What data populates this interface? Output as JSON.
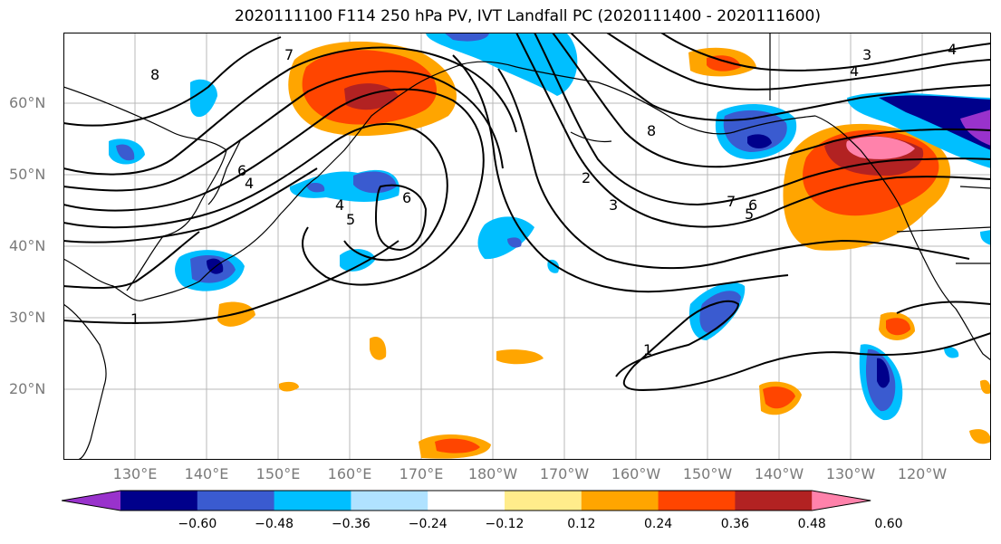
{
  "title": "2020111100 F114 250 hPa PV, IVT Landfall PC (2020111400 - 2020111600)",
  "lat_labels": [
    "60°N",
    "50°N",
    "40°N",
    "30°N",
    "20°N"
  ],
  "lon_labels": [
    "130°E",
    "140°E",
    "150°E",
    "160°E",
    "170°E",
    "180°W",
    "170°W",
    "160°W",
    "150°W",
    "140°W",
    "130°W",
    "120°W"
  ],
  "colorbar": {
    "colors": [
      "#9932cc",
      "#00008b",
      "#3a5bd0",
      "#00bfff",
      "#b0e2ff",
      "#ffffff",
      "#ffec8b",
      "#ffa500",
      "#ff4500",
      "#b22222",
      "#ff82ab"
    ],
    "labels": [
      "−0.60",
      "−0.48",
      "−0.36",
      "−0.24",
      "−0.12",
      "0.12",
      "0.24",
      "0.36",
      "0.48",
      "0.60"
    ]
  },
  "contour_labels": [
    "8",
    "7",
    "6",
    "4",
    "5",
    "4",
    "6",
    "3",
    "2",
    "1",
    "8",
    "7",
    "6",
    "5",
    "4",
    "3",
    "4",
    "1"
  ],
  "colors": {
    "grid": "#b0b0b0",
    "contour": "#000000",
    "coast": "#000000"
  }
}
